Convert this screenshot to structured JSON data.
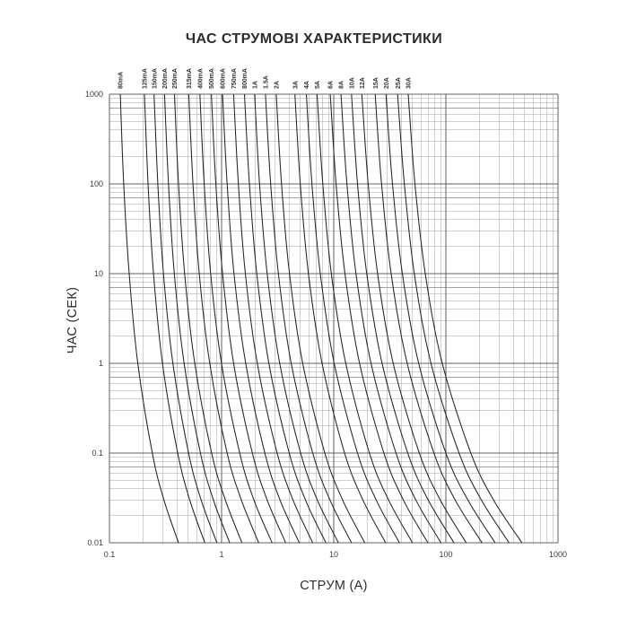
{
  "title": "ЧАС СТРУМОВІ ХАРАКТЕРИСТИКИ",
  "chart_data": {
    "type": "line",
    "title": "ЧАС СТРУМОВІ ХАРАКТЕРИСТИКИ",
    "xlabel": "СТРУМ (А)",
    "ylabel": "ЧАС (СЕК)",
    "x_scale": "log",
    "y_scale": "log",
    "xlim": [
      0.1,
      1000
    ],
    "ylim": [
      0.01,
      1000
    ],
    "x_tick_labels": [
      "0.1",
      "1",
      "10",
      "100",
      "1000"
    ],
    "y_tick_labels": [
      "1000",
      "100",
      "10",
      "1",
      "0.1",
      "0.01"
    ],
    "grid": "log major and minor, both axes",
    "legend_position": "rotated labels above top edge of plot",
    "colors": {
      "curve": "#242424",
      "grid_major": "#606060",
      "grid_minor": "#a3a3a3",
      "text": "#2d2d2d"
    },
    "series_points_format": "[current_A, time_s]",
    "series": [
      {
        "name": "80mA",
        "points": [
          [
            0.125,
            1000
          ],
          [
            0.134,
            100
          ],
          [
            0.15,
            10
          ],
          [
            0.179,
            1
          ],
          [
            0.241,
            0.1
          ],
          [
            0.306,
            0.03
          ],
          [
            0.413,
            0.01
          ]
        ]
      },
      {
        "name": "125mA",
        "points": [
          [
            0.205,
            1000
          ],
          [
            0.221,
            100
          ],
          [
            0.247,
            10
          ],
          [
            0.297,
            1
          ],
          [
            0.406,
            0.1
          ],
          [
            0.52,
            0.03
          ],
          [
            0.709,
            0.01
          ]
        ]
      },
      {
        "name": "150mA",
        "points": [
          [
            0.25,
            1000
          ],
          [
            0.27,
            100
          ],
          [
            0.303,
            10
          ],
          [
            0.368,
            1
          ],
          [
            0.508,
            0.1
          ],
          [
            0.657,
            0.03
          ],
          [
            0.908,
            0.01
          ]
        ]
      },
      {
        "name": "200mA",
        "points": [
          [
            0.31,
            1000
          ],
          [
            0.336,
            100
          ],
          [
            0.379,
            10
          ],
          [
            0.463,
            1
          ],
          [
            0.647,
            0.1
          ],
          [
            0.845,
            0.03
          ],
          [
            1.18,
            0.01
          ]
        ]
      },
      {
        "name": "250mA",
        "points": [
          [
            0.38,
            1000
          ],
          [
            0.413,
            100
          ],
          [
            0.468,
            10
          ],
          [
            0.576,
            1
          ],
          [
            0.815,
            0.1
          ],
          [
            1.08,
            0.03
          ],
          [
            1.52,
            0.01
          ]
        ]
      },
      {
        "name": "315mA",
        "points": [
          [
            0.51,
            1000
          ],
          [
            0.556,
            100
          ],
          [
            0.632,
            10
          ],
          [
            0.784,
            1
          ],
          [
            1.12,
            0.1
          ],
          [
            1.5,
            0.03
          ],
          [
            2.14,
            0.01
          ]
        ]
      },
      {
        "name": "400mA",
        "points": [
          [
            0.64,
            1000
          ],
          [
            0.7,
            100
          ],
          [
            0.799,
            10
          ],
          [
            0.998,
            1
          ],
          [
            1.45,
            0.1
          ],
          [
            1.94,
            0.03
          ],
          [
            2.82,
            0.01
          ]
        ]
      },
      {
        "name": "500mA",
        "points": [
          [
            0.81,
            1000
          ],
          [
            0.888,
            100
          ],
          [
            1.02,
            10
          ],
          [
            1.28,
            1
          ],
          [
            1.88,
            0.1
          ],
          [
            2.55,
            0.03
          ],
          [
            3.73,
            0.01
          ]
        ]
      },
      {
        "name": "600mA",
        "points": [
          [
            1.02,
            1000
          ],
          [
            1.12,
            100
          ],
          [
            1.29,
            10
          ],
          [
            1.64,
            1
          ],
          [
            2.43,
            0.1
          ],
          [
            3.32,
            0.03
          ],
          [
            4.93,
            0.01
          ]
        ]
      },
      {
        "name": "750mA",
        "points": [
          [
            1.28,
            1000
          ],
          [
            1.41,
            100
          ],
          [
            1.63,
            10
          ],
          [
            2.08,
            1
          ],
          [
            3.13,
            0.1
          ],
          [
            4.33,
            0.03
          ],
          [
            6.49,
            0.01
          ]
        ]
      },
      {
        "name": "800mA",
        "points": [
          [
            1.6,
            1000
          ],
          [
            1.77,
            100
          ],
          [
            2.06,
            10
          ],
          [
            2.64,
            1
          ],
          [
            4.01,
            0.1
          ],
          [
            5.6,
            0.03
          ],
          [
            8.5,
            0.01
          ]
        ]
      },
      {
        "name": "1A",
        "points": [
          [
            1.97,
            1000
          ],
          [
            2.18,
            100
          ],
          [
            2.55,
            10
          ],
          [
            3.3,
            1
          ],
          [
            5.07,
            0.1
          ],
          [
            7.14,
            0.03
          ],
          [
            11.0,
            0.01
          ]
        ]
      },
      {
        "name": "1.5A",
        "points": [
          [
            2.46,
            1000
          ],
          [
            2.74,
            100
          ],
          [
            3.21,
            10
          ],
          [
            4.18,
            1
          ],
          [
            6.5,
            0.1
          ],
          [
            9.25,
            0.03
          ],
          [
            14.4,
            0.01
          ]
        ]
      },
      {
        "name": "2A",
        "points": [
          [
            3.07,
            1000
          ],
          [
            3.42,
            100
          ],
          [
            4.03,
            10
          ],
          [
            5.29,
            1
          ],
          [
            8.33,
            0.1
          ],
          [
            12.0,
            0.03
          ],
          [
            18.9,
            0.01
          ]
        ]
      },
      {
        "name": "3A",
        "points": [
          [
            4.5,
            1000
          ],
          [
            5.03,
            100
          ],
          [
            5.95,
            10
          ],
          [
            7.87,
            1
          ],
          [
            12.5,
            0.1
          ],
          [
            18.2,
            0.03
          ],
          [
            29.0,
            0.01
          ]
        ]
      },
      {
        "name": "4A",
        "points": [
          [
            5.7,
            1000
          ],
          [
            6.39,
            100
          ],
          [
            7.59,
            10
          ],
          [
            10.1,
            1
          ],
          [
            16.3,
            0.1
          ],
          [
            23.9,
            0.03
          ],
          [
            38.5,
            0.01
          ]
        ]
      },
      {
        "name": "5A",
        "points": [
          [
            7.1,
            1000
          ],
          [
            7.99,
            100
          ],
          [
            9.52,
            10
          ],
          [
            12.8,
            1
          ],
          [
            20.8,
            0.1
          ],
          [
            30.8,
            0.03
          ],
          [
            50.3,
            0.01
          ]
        ]
      },
      {
        "name": "6A",
        "points": [
          [
            9.3,
            1000
          ],
          [
            10.5,
            100
          ],
          [
            12.6,
            10
          ],
          [
            17.0,
            1
          ],
          [
            28.0,
            0.1
          ],
          [
            41.8,
            0.03
          ],
          [
            69.0,
            0.01
          ]
        ]
      },
      {
        "name": "8A",
        "points": [
          [
            11.6,
            1000
          ],
          [
            13.1,
            100
          ],
          [
            15.8,
            10
          ],
          [
            21.5,
            1
          ],
          [
            35.9,
            0.1
          ],
          [
            54.0,
            0.03
          ],
          [
            90.3,
            0.01
          ]
        ]
      },
      {
        "name": "10A",
        "points": [
          [
            14.4,
            1000
          ],
          [
            16.3,
            100
          ],
          [
            19.7,
            10
          ],
          [
            27.0,
            1
          ],
          [
            45.7,
            0.1
          ],
          [
            69.6,
            0.03
          ],
          [
            118,
            0.01
          ]
        ]
      },
      {
        "name": "12A",
        "points": [
          [
            17.8,
            1000
          ],
          [
            20.3,
            100
          ],
          [
            24.6,
            10
          ],
          [
            33.9,
            1
          ],
          [
            58.0,
            0.1
          ],
          [
            89.1,
            0.03
          ],
          [
            152,
            0.01
          ]
        ]
      },
      {
        "name": "15A",
        "points": [
          [
            23.4,
            1000
          ],
          [
            26.7,
            100
          ],
          [
            32.5,
            10
          ],
          [
            45.2,
            1
          ],
          [
            78.2,
            0.1
          ],
          [
            121,
            0.03
          ],
          [
            210,
            0.01
          ]
        ]
      },
      {
        "name": "20A",
        "points": [
          [
            29.2,
            1000
          ],
          [
            33.4,
            100
          ],
          [
            40.9,
            10
          ],
          [
            57.2,
            1
          ],
          [
            100,
            0.1
          ],
          [
            157,
            0.03
          ],
          [
            275,
            0.01
          ]
        ]
      },
      {
        "name": "25A",
        "points": [
          [
            37.1,
            1000
          ],
          [
            42.6,
            100
          ],
          [
            52.3,
            10
          ],
          [
            73.7,
            1
          ],
          [
            131,
            0.1
          ],
          [
            207,
            0.03
          ],
          [
            366,
            0.01
          ]
        ]
      },
      {
        "name": "30A",
        "points": [
          [
            46.1,
            1000
          ],
          [
            53.0,
            100
          ],
          [
            65.5,
            10
          ],
          [
            92.9,
            1
          ],
          [
            167,
            0.1
          ],
          [
            266,
            0.03
          ],
          [
            477,
            0.01
          ]
        ]
      }
    ]
  }
}
